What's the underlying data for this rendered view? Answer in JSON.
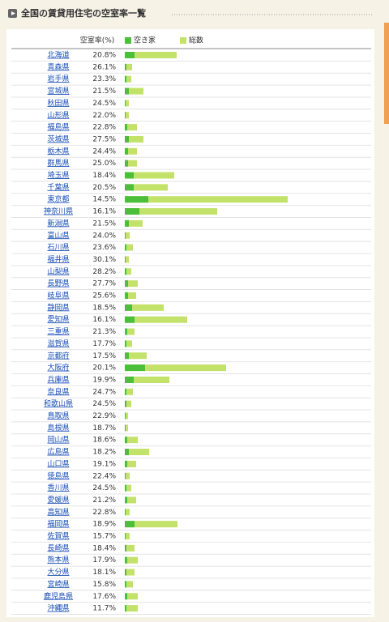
{
  "header": {
    "title": "全国の賃貸用住宅の空室率一覧"
  },
  "chart_data": {
    "type": "bar",
    "categories": [
      "北海道",
      "青森県",
      "岩手県",
      "宮城県",
      "秋田県",
      "山形県",
      "福島県",
      "茨城県",
      "栃木県",
      "群馬県",
      "埼玉県",
      "千葉県",
      "東京都",
      "神奈川県",
      "新潟県",
      "富山県",
      "石川県",
      "福井県",
      "山梨県",
      "長野県",
      "岐阜県",
      "静岡県",
      "愛知県",
      "三重県",
      "滋賀県",
      "京都府",
      "大阪府",
      "兵庫県",
      "奈良県",
      "和歌山県",
      "鳥取県",
      "島根県",
      "岡山県",
      "広島県",
      "山口県",
      "徳島県",
      "香川県",
      "愛媛県",
      "高知県",
      "福岡県",
      "佐賀県",
      "長崎県",
      "熊本県",
      "大分県",
      "宮崎県",
      "鹿児島県",
      "沖縄県"
    ],
    "rate": {
      "name": "空室率(%)",
      "values": [
        20.8,
        26.1,
        23.3,
        21.5,
        24.5,
        22.0,
        22.8,
        27.5,
        24.4,
        25.0,
        18.4,
        20.5,
        14.5,
        16.1,
        21.5,
        24.0,
        23.6,
        30.1,
        28.2,
        27.7,
        25.6,
        18.5,
        16.1,
        21.3,
        17.7,
        17.5,
        20.1,
        19.9,
        24.7,
        24.5,
        22.9,
        18.7,
        18.6,
        18.2,
        19.1,
        22.4,
        24.5,
        21.2,
        22.8,
        18.9,
        15.7,
        18.4,
        17.9,
        18.1,
        15.8,
        17.6,
        11.7
      ],
      "value_labels": [
        "20.8%",
        "26.1%",
        "23.3%",
        "21.5%",
        "24.5%",
        "22.0%",
        "22.8%",
        "27.5%",
        "24.4%",
        "25.0%",
        "18.4%",
        "20.5%",
        "14.5%",
        "16.1%",
        "21.5%",
        "24.0%",
        "23.6%",
        "30.1%",
        "28.2%",
        "27.7%",
        "25.6%",
        "18.5%",
        "16.1%",
        "21.3%",
        "17.7%",
        "17.5%",
        "20.1%",
        "19.9%",
        "24.7%",
        "24.5%",
        "22.9%",
        "18.7%",
        "18.6%",
        "18.2%",
        "19.1%",
        "22.4%",
        "24.5%",
        "21.2%",
        "22.8%",
        "18.9%",
        "15.7%",
        "18.4%",
        "17.9%",
        "18.1%",
        "15.8%",
        "17.6%",
        "11.7%"
      ]
    },
    "series": [
      {
        "name": "空き家",
        "color": "#4cbf3a",
        "values": [
          12,
          2,
          2,
          5,
          1,
          1,
          3,
          5,
          4,
          4,
          11,
          11,
          29,
          18,
          5,
          1,
          2,
          1,
          2,
          4,
          4,
          9,
          12,
          3,
          2,
          5,
          25,
          11,
          2,
          2,
          1,
          1,
          3,
          5,
          3,
          1,
          2,
          3,
          1,
          12,
          1,
          2,
          3,
          2,
          2,
          3,
          2
        ]
      },
      {
        "name": "総数",
        "color": "#c3e26a",
        "values": [
          64,
          9,
          8,
          23,
          5,
          5,
          15,
          23,
          15,
          15,
          61,
          53,
          201,
          114,
          22,
          6,
          10,
          5,
          8,
          16,
          14,
          48,
          77,
          12,
          9,
          27,
          125,
          55,
          10,
          8,
          4,
          4,
          16,
          30,
          14,
          6,
          8,
          14,
          6,
          65,
          6,
          12,
          16,
          12,
          10,
          16,
          16
        ]
      }
    ],
    "xlim": [
      0,
      220
    ]
  }
}
